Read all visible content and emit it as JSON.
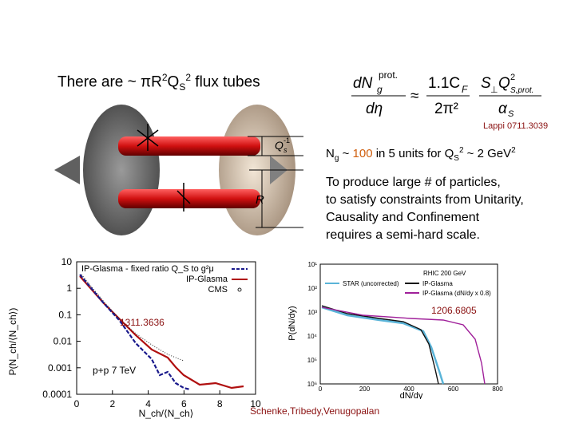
{
  "heading": "There are ~ πR²Qₛ² flux tubes",
  "heading_parts": {
    "pre": "There are ~ πR",
    "sup1": "2",
    "q": "Q",
    "sub": "S",
    "sup2": "2",
    "post": " flux tubes"
  },
  "equation": {
    "lhs_num": "dN",
    "lhs_sup": "prot.",
    "lhs_sub": "g",
    "lhs_den": "dη",
    "approx": "≈",
    "mid_num": "1.1C",
    "mid_num_sub": "F",
    "mid_den": "2π²",
    "rhs_num": "S",
    "rhs_num_sub": "⊥",
    "rhs_q": "Q",
    "rhs_q_sup": "2",
    "rhs_q_sub": "S,prot.",
    "rhs_den": "α",
    "rhs_den_sub": "S"
  },
  "refs": {
    "lappi": "Lappi 0711.3039",
    "left_plot": "1311.3636",
    "right_plot": "1206.6805",
    "authors": "Schenke,Tribedy,Venugopalan"
  },
  "ng_line": {
    "pre": "N",
    "sub": "g",
    "mid": " ~ ",
    "value": "100",
    "post": " in 5 units for Q",
    "qsub": "S",
    "qsup": "2",
    "tail": " ~ 2 GeV",
    "tailsup": "2"
  },
  "paragraph": [
    "To produce large # of particles,",
    "to satisfy constraints from Unitarity,",
    "Causality and Confinement",
    "requires a semi-hard scale."
  ],
  "diagram": {
    "label_qs": "Q",
    "label_qs_sub": "s",
    "label_qs_sup": "-1",
    "label_r": "R"
  },
  "left_chart": {
    "ylabel": "P(N_ch/⟨N_ch⟩)",
    "xlabel": "N_ch/⟨N_ch⟩",
    "yticks": [
      "10",
      "1",
      "0.1",
      "0.01",
      "0.001",
      "0.0001"
    ],
    "xticks": [
      "0",
      "2",
      "4",
      "6",
      "8",
      "10"
    ],
    "legend": [
      "IP-Glasma - fixed ratio Q_S to g²μ",
      "IP-Glasma",
      "CMS"
    ],
    "annotation": "p+p 7 TeV",
    "colors": {
      "navy": "#1a1a8c",
      "red": "#b01010",
      "black": "#222222"
    }
  },
  "right_chart": {
    "ylabel": "P(dN/dy)",
    "xlabel": "dN/dy",
    "yticks": [
      "10¹",
      "10²",
      "10³",
      "10⁴",
      "10⁵",
      "10⁶"
    ],
    "xticks": [
      "0",
      "200",
      "400",
      "600",
      "800"
    ],
    "legend": [
      "STAR (uncorrected)",
      "IP-Glasma",
      "IP-Glasma (dN/dy x 0.8)"
    ],
    "header": "RHIC 200 GeV",
    "colors": {
      "cyan": "#5ab4d8",
      "black": "#111111",
      "magenta": "#a0209a"
    }
  }
}
